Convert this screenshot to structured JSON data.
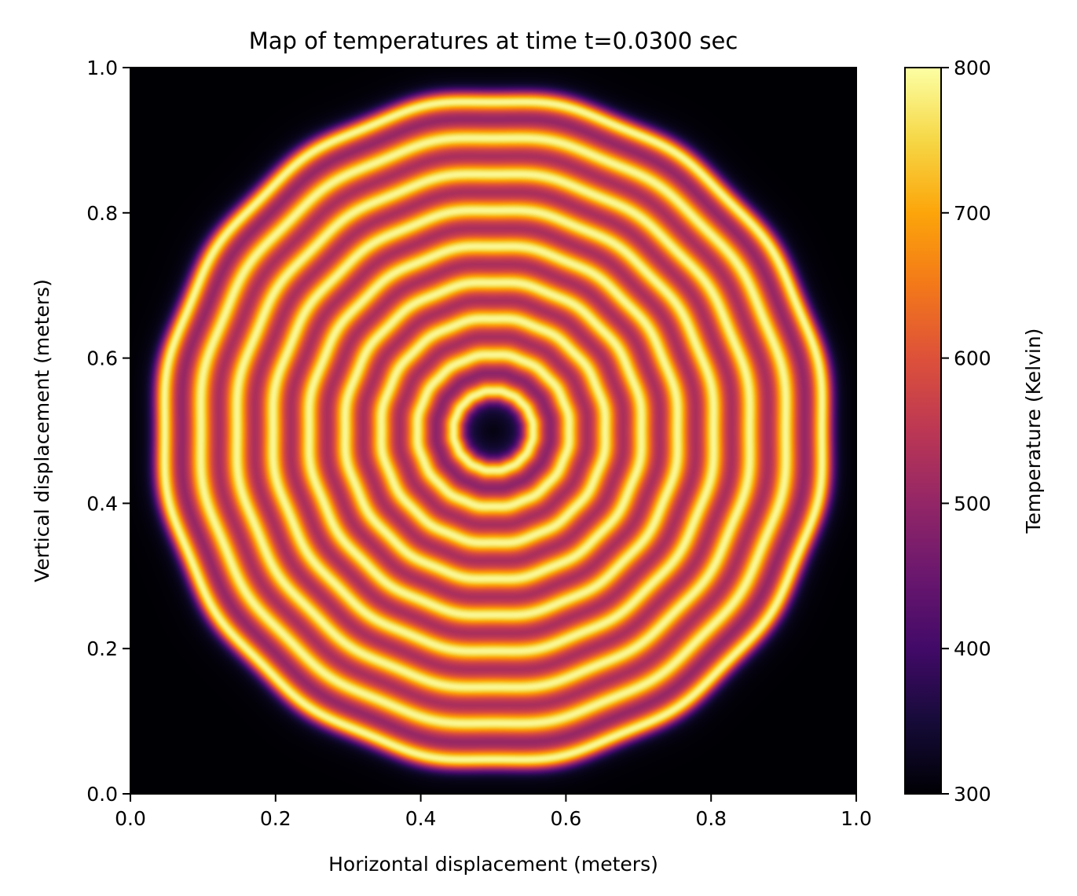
{
  "chart_data": {
    "type": "heatmap",
    "title": "Map of temperatures at time t=0.0300 sec",
    "xlabel": "Horizontal displacement (meters)",
    "ylabel": "Vertical displacement (meters)",
    "xlim": [
      0.0,
      1.0
    ],
    "ylim": [
      0.0,
      1.0
    ],
    "x_ticks": [
      "0.0",
      "0.2",
      "0.4",
      "0.6",
      "0.8",
      "1.0"
    ],
    "y_ticks": [
      "0.0",
      "0.2",
      "0.4",
      "0.6",
      "0.8",
      "1.0"
    ],
    "x_tick_values": [
      0.0,
      0.2,
      0.4,
      0.6,
      0.8,
      1.0
    ],
    "y_tick_values": [
      0.0,
      0.2,
      0.4,
      0.6,
      0.8,
      1.0
    ],
    "grid": false,
    "colormap": "inferno",
    "colorbar": {
      "label": "Temperature (Kelvin)",
      "range": [
        300,
        800
      ],
      "ticks": [
        "300",
        "400",
        "500",
        "600",
        "700",
        "800"
      ],
      "tick_values": [
        300,
        400,
        500,
        600,
        700,
        800
      ]
    },
    "field": {
      "description_center": [
        0.5,
        0.5
      ],
      "background_temperature": 300,
      "disk_radius": 0.455,
      "ring_radii": [
        0.055,
        0.105,
        0.155,
        0.205,
        0.255,
        0.305,
        0.355,
        0.405,
        0.455
      ],
      "ring_peak_temperature": 790,
      "between_ring_temperature": 520,
      "center_temperature": 300
    }
  }
}
